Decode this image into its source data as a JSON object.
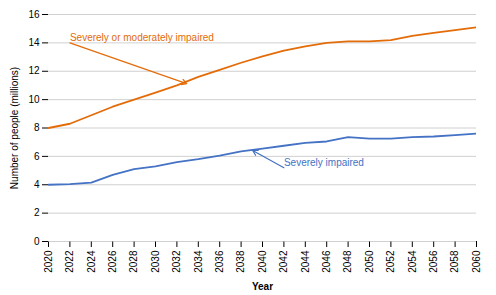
{
  "chart_data": {
    "type": "line",
    "x": [
      2020,
      2022,
      2024,
      2026,
      2028,
      2030,
      2032,
      2034,
      2036,
      2038,
      2040,
      2042,
      2044,
      2046,
      2048,
      2050,
      2052,
      2054,
      2056,
      2058,
      2060
    ],
    "series": [
      {
        "name": "Severely or moderately impaired",
        "color": "#E36C09",
        "values": [
          8.0,
          8.3,
          8.9,
          9.5,
          10.0,
          10.5,
          11.0,
          11.6,
          12.1,
          12.6,
          13.05,
          13.45,
          13.75,
          14.0,
          14.1,
          14.1,
          14.2,
          14.5,
          14.7,
          14.9,
          15.1
        ]
      },
      {
        "name": "Severely impaired",
        "color": "#4472C4",
        "values": [
          4.0,
          4.05,
          4.15,
          4.7,
          5.1,
          5.3,
          5.6,
          5.8,
          6.05,
          6.35,
          6.55,
          6.75,
          6.95,
          7.05,
          7.35,
          7.25,
          7.25,
          7.35,
          7.4,
          7.5,
          7.6
        ]
      }
    ],
    "xlabel": "Year",
    "ylabel": "Number of people (millions)",
    "xlim": [
      2020,
      2060
    ],
    "xticks": [
      2020,
      2022,
      2024,
      2026,
      2028,
      2030,
      2032,
      2034,
      2036,
      2038,
      2040,
      2042,
      2044,
      2046,
      2048,
      2050,
      2052,
      2054,
      2056,
      2058,
      2060
    ],
    "ylim": [
      0,
      16
    ],
    "yticks": [
      0,
      2,
      4,
      6,
      8,
      10,
      12,
      14,
      16
    ],
    "grid": true,
    "annotations": [
      {
        "text": "Severely or moderately impaired",
        "x": 2022,
        "y": 14.0,
        "arrow_x": 2033,
        "arrow_y": 11.1,
        "color": "#E36C09"
      },
      {
        "text": "Severely impaired",
        "x": 2042,
        "y": 5.2,
        "arrow_x": 2039,
        "arrow_y": 6.45,
        "color": "#4472C4"
      }
    ]
  }
}
